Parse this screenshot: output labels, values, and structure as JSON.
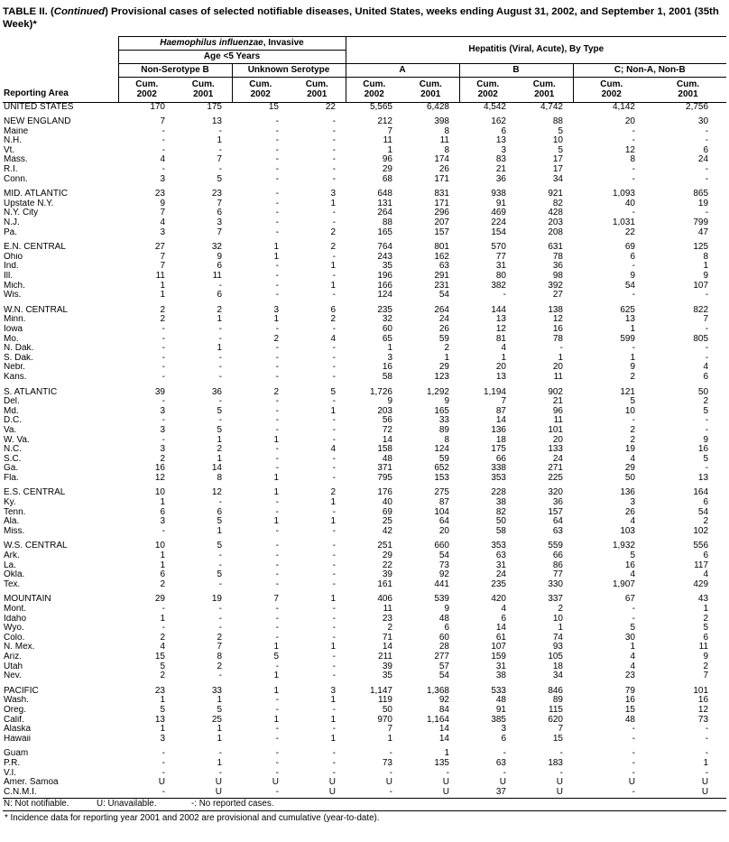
{
  "title": {
    "prefix": "TABLE II. (",
    "italic": "Continued",
    "rest": ") Provisional cases of selected notifiable diseases, United States, weeks ending August 31, 2002, and September 1, 2001 (35th Week)*"
  },
  "header": {
    "reporting_area": "Reporting Area",
    "group_haemophilus": {
      "italic": "Haemophilus influenzae",
      "rest": ", Invasive"
    },
    "subgroup_age": "Age <5 Years",
    "group_hepatitis": "Hepatitis (Viral, Acute), By Type",
    "col_groups": [
      "Non-Serotype B",
      "Unknown Serotype",
      "A",
      "B",
      "C; Non-A, Non-B"
    ],
    "cum_label": "Cum.",
    "years": [
      "2002",
      "2001",
      "2002",
      "2001",
      "2002",
      "2001",
      "2002",
      "2001",
      "2002",
      "2001"
    ]
  },
  "groups": [
    {
      "region": "united-states",
      "rows": [
        {
          "area": "UNITED STATES",
          "values": [
            "170",
            "175",
            "15",
            "22",
            "5,565",
            "6,428",
            "4,542",
            "4,742",
            "4,142",
            "2,756"
          ]
        }
      ]
    },
    {
      "region": "new-england",
      "rows": [
        {
          "area": "NEW ENGLAND",
          "values": [
            "7",
            "13",
            "-",
            "-",
            "212",
            "398",
            "162",
            "88",
            "20",
            "30"
          ]
        },
        {
          "area": "Maine",
          "values": [
            "-",
            "-",
            "-",
            "-",
            "7",
            "8",
            "6",
            "5",
            "-",
            "-"
          ]
        },
        {
          "area": "N.H.",
          "values": [
            "-",
            "1",
            "-",
            "-",
            "11",
            "11",
            "13",
            "10",
            "-",
            "-"
          ]
        },
        {
          "area": "Vt.",
          "values": [
            "-",
            "-",
            "-",
            "-",
            "1",
            "8",
            "3",
            "5",
            "12",
            "6"
          ]
        },
        {
          "area": "Mass.",
          "values": [
            "4",
            "7",
            "-",
            "-",
            "96",
            "174",
            "83",
            "17",
            "8",
            "24"
          ]
        },
        {
          "area": "R.I.",
          "values": [
            "-",
            "-",
            "-",
            "-",
            "29",
            "26",
            "21",
            "17",
            "-",
            "-"
          ]
        },
        {
          "area": "Conn.",
          "values": [
            "3",
            "5",
            "-",
            "-",
            "68",
            "171",
            "36",
            "34",
            "-",
            "-"
          ]
        }
      ]
    },
    {
      "region": "mid-atlantic",
      "rows": [
        {
          "area": "MID. ATLANTIC",
          "values": [
            "23",
            "23",
            "-",
            "3",
            "648",
            "831",
            "938",
            "921",
            "1,093",
            "865"
          ]
        },
        {
          "area": "Upstate N.Y.",
          "values": [
            "9",
            "7",
            "-",
            "1",
            "131",
            "171",
            "91",
            "82",
            "40",
            "19"
          ]
        },
        {
          "area": "N.Y. City",
          "values": [
            "7",
            "6",
            "-",
            "-",
            "264",
            "296",
            "469",
            "428",
            "-",
            "-"
          ]
        },
        {
          "area": "N.J.",
          "values": [
            "4",
            "3",
            "-",
            "-",
            "88",
            "207",
            "224",
            "203",
            "1,031",
            "799"
          ]
        },
        {
          "area": "Pa.",
          "values": [
            "3",
            "7",
            "-",
            "2",
            "165",
            "157",
            "154",
            "208",
            "22",
            "47"
          ]
        }
      ]
    },
    {
      "region": "en-central",
      "rows": [
        {
          "area": "E.N. CENTRAL",
          "values": [
            "27",
            "32",
            "1",
            "2",
            "764",
            "801",
            "570",
            "631",
            "69",
            "125"
          ]
        },
        {
          "area": "Ohio",
          "values": [
            "7",
            "9",
            "1",
            "-",
            "243",
            "162",
            "77",
            "78",
            "6",
            "8"
          ]
        },
        {
          "area": "Ind.",
          "values": [
            "7",
            "6",
            "-",
            "1",
            "35",
            "63",
            "31",
            "36",
            "-",
            "1"
          ]
        },
        {
          "area": "Ill.",
          "values": [
            "11",
            "11",
            "-",
            "-",
            "196",
            "291",
            "80",
            "98",
            "9",
            "9"
          ]
        },
        {
          "area": "Mich.",
          "values": [
            "1",
            "-",
            "-",
            "1",
            "166",
            "231",
            "382",
            "392",
            "54",
            "107"
          ]
        },
        {
          "area": "Wis.",
          "values": [
            "1",
            "6",
            "-",
            "-",
            "124",
            "54",
            "-",
            "27",
            "-",
            "-"
          ]
        }
      ]
    },
    {
      "region": "wn-central",
      "rows": [
        {
          "area": "W.N. CENTRAL",
          "values": [
            "2",
            "2",
            "3",
            "6",
            "235",
            "264",
            "144",
            "138",
            "625",
            "822"
          ]
        },
        {
          "area": "Minn.",
          "values": [
            "2",
            "1",
            "1",
            "2",
            "32",
            "24",
            "13",
            "12",
            "13",
            "7"
          ]
        },
        {
          "area": "Iowa",
          "values": [
            "-",
            "-",
            "-",
            "-",
            "60",
            "26",
            "12",
            "16",
            "1",
            "-"
          ]
        },
        {
          "area": "Mo.",
          "values": [
            "-",
            "-",
            "2",
            "4",
            "65",
            "59",
            "81",
            "78",
            "599",
            "805"
          ]
        },
        {
          "area": "N. Dak.",
          "values": [
            "-",
            "1",
            "-",
            "-",
            "1",
            "2",
            "4",
            "-",
            "-",
            "-"
          ]
        },
        {
          "area": "S. Dak.",
          "values": [
            "-",
            "-",
            "-",
            "-",
            "3",
            "1",
            "1",
            "1",
            "1",
            "-"
          ]
        },
        {
          "area": "Nebr.",
          "values": [
            "-",
            "-",
            "-",
            "-",
            "16",
            "29",
            "20",
            "20",
            "9",
            "4"
          ]
        },
        {
          "area": "Kans.",
          "values": [
            "-",
            "-",
            "-",
            "-",
            "58",
            "123",
            "13",
            "11",
            "2",
            "6"
          ]
        }
      ]
    },
    {
      "region": "s-atlantic",
      "rows": [
        {
          "area": "S. ATLANTIC",
          "values": [
            "39",
            "36",
            "2",
            "5",
            "1,726",
            "1,292",
            "1,194",
            "902",
            "121",
            "50"
          ]
        },
        {
          "area": "Del.",
          "values": [
            "-",
            "-",
            "-",
            "-",
            "9",
            "9",
            "7",
            "21",
            "5",
            "2"
          ]
        },
        {
          "area": "Md.",
          "values": [
            "3",
            "5",
            "-",
            "1",
            "203",
            "165",
            "87",
            "96",
            "10",
            "5"
          ]
        },
        {
          "area": "D.C.",
          "values": [
            "-",
            "-",
            "-",
            "-",
            "56",
            "33",
            "14",
            "11",
            "-",
            "-"
          ]
        },
        {
          "area": "Va.",
          "values": [
            "3",
            "5",
            "-",
            "-",
            "72",
            "89",
            "136",
            "101",
            "2",
            "-"
          ]
        },
        {
          "area": "W. Va.",
          "values": [
            "-",
            "1",
            "1",
            "-",
            "14",
            "8",
            "18",
            "20",
            "2",
            "9"
          ]
        },
        {
          "area": "N.C.",
          "values": [
            "3",
            "2",
            "-",
            "4",
            "158",
            "124",
            "175",
            "133",
            "19",
            "16"
          ]
        },
        {
          "area": "S.C.",
          "values": [
            "2",
            "1",
            "-",
            "-",
            "48",
            "59",
            "66",
            "24",
            "4",
            "5"
          ]
        },
        {
          "area": "Ga.",
          "values": [
            "16",
            "14",
            "-",
            "-",
            "371",
            "652",
            "338",
            "271",
            "29",
            "-"
          ]
        },
        {
          "area": "Fla.",
          "values": [
            "12",
            "8",
            "1",
            "-",
            "795",
            "153",
            "353",
            "225",
            "50",
            "13"
          ]
        }
      ]
    },
    {
      "region": "es-central",
      "rows": [
        {
          "area": "E.S. CENTRAL",
          "values": [
            "10",
            "12",
            "1",
            "2",
            "176",
            "275",
            "228",
            "320",
            "136",
            "164"
          ]
        },
        {
          "area": "Ky.",
          "values": [
            "1",
            "-",
            "-",
            "1",
            "40",
            "87",
            "38",
            "36",
            "3",
            "6"
          ]
        },
        {
          "area": "Tenn.",
          "values": [
            "6",
            "6",
            "-",
            "-",
            "69",
            "104",
            "82",
            "157",
            "26",
            "54"
          ]
        },
        {
          "area": "Ala.",
          "values": [
            "3",
            "5",
            "1",
            "1",
            "25",
            "64",
            "50",
            "64",
            "4",
            "2"
          ]
        },
        {
          "area": "Miss.",
          "values": [
            "-",
            "1",
            "-",
            "-",
            "42",
            "20",
            "58",
            "63",
            "103",
            "102"
          ]
        }
      ]
    },
    {
      "region": "ws-central",
      "rows": [
        {
          "area": "W.S. CENTRAL",
          "values": [
            "10",
            "5",
            "-",
            "-",
            "251",
            "660",
            "353",
            "559",
            "1,932",
            "556"
          ]
        },
        {
          "area": "Ark.",
          "values": [
            "1",
            "-",
            "-",
            "-",
            "29",
            "54",
            "63",
            "66",
            "5",
            "6"
          ]
        },
        {
          "area": "La.",
          "values": [
            "1",
            "-",
            "-",
            "-",
            "22",
            "73",
            "31",
            "86",
            "16",
            "117"
          ]
        },
        {
          "area": "Okla.",
          "values": [
            "6",
            "5",
            "-",
            "-",
            "39",
            "92",
            "24",
            "77",
            "4",
            "4"
          ]
        },
        {
          "area": "Tex.",
          "values": [
            "2",
            "-",
            "-",
            "-",
            "161",
            "441",
            "235",
            "330",
            "1,907",
            "429"
          ]
        }
      ]
    },
    {
      "region": "mountain",
      "rows": [
        {
          "area": "MOUNTAIN",
          "values": [
            "29",
            "19",
            "7",
            "1",
            "406",
            "539",
            "420",
            "337",
            "67",
            "43"
          ]
        },
        {
          "area": "Mont.",
          "values": [
            "-",
            "-",
            "-",
            "-",
            "11",
            "9",
            "4",
            "2",
            "-",
            "1"
          ]
        },
        {
          "area": "Idaho",
          "values": [
            "1",
            "-",
            "-",
            "-",
            "23",
            "48",
            "6",
            "10",
            "-",
            "2"
          ]
        },
        {
          "area": "Wyo.",
          "values": [
            "-",
            "-",
            "-",
            "-",
            "2",
            "6",
            "14",
            "1",
            "5",
            "5"
          ]
        },
        {
          "area": "Colo.",
          "values": [
            "2",
            "2",
            "-",
            "-",
            "71",
            "60",
            "61",
            "74",
            "30",
            "6"
          ]
        },
        {
          "area": "N. Mex.",
          "values": [
            "4",
            "7",
            "1",
            "1",
            "14",
            "28",
            "107",
            "93",
            "1",
            "11"
          ]
        },
        {
          "area": "Ariz.",
          "values": [
            "15",
            "8",
            "5",
            "-",
            "211",
            "277",
            "159",
            "105",
            "4",
            "9"
          ]
        },
        {
          "area": "Utah",
          "values": [
            "5",
            "2",
            "-",
            "-",
            "39",
            "57",
            "31",
            "18",
            "4",
            "2"
          ]
        },
        {
          "area": "Nev.",
          "values": [
            "2",
            "-",
            "1",
            "-",
            "35",
            "54",
            "38",
            "34",
            "23",
            "7"
          ]
        }
      ]
    },
    {
      "region": "pacific",
      "rows": [
        {
          "area": "PACIFIC",
          "values": [
            "23",
            "33",
            "1",
            "3",
            "1,147",
            "1,368",
            "533",
            "846",
            "79",
            "101"
          ]
        },
        {
          "area": "Wash.",
          "values": [
            "1",
            "1",
            "-",
            "1",
            "119",
            "92",
            "48",
            "89",
            "16",
            "16"
          ]
        },
        {
          "area": "Oreg.",
          "values": [
            "5",
            "5",
            "-",
            "-",
            "50",
            "84",
            "91",
            "115",
            "15",
            "12"
          ]
        },
        {
          "area": "Calif.",
          "values": [
            "13",
            "25",
            "1",
            "1",
            "970",
            "1,164",
            "385",
            "620",
            "48",
            "73"
          ]
        },
        {
          "area": "Alaska",
          "values": [
            "1",
            "1",
            "-",
            "-",
            "7",
            "14",
            "3",
            "7",
            "-",
            "-"
          ]
        },
        {
          "area": "Hawaii",
          "values": [
            "3",
            "1",
            "-",
            "1",
            "1",
            "14",
            "6",
            "15",
            "-",
            "-"
          ]
        }
      ]
    },
    {
      "region": "territories",
      "rows": [
        {
          "area": "Guam",
          "values": [
            "-",
            "-",
            "-",
            "-",
            "-",
            "1",
            "-",
            "-",
            "-",
            "-"
          ]
        },
        {
          "area": "P.R.",
          "values": [
            "-",
            "1",
            "-",
            "-",
            "73",
            "135",
            "63",
            "183",
            "-",
            "1"
          ]
        },
        {
          "area": "V.I.",
          "values": [
            "-",
            "-",
            "-",
            "-",
            "-",
            "-",
            "-",
            "-",
            "-",
            "-"
          ]
        },
        {
          "area": "Amer. Samoa",
          "values": [
            "U",
            "U",
            "U",
            "U",
            "U",
            "U",
            "U",
            "U",
            "U",
            "U"
          ]
        },
        {
          "area": "C.N.M.I.",
          "values": [
            "-",
            "U",
            "-",
            "U",
            "-",
            "U",
            "37",
            "U",
            "-",
            "U"
          ]
        }
      ]
    }
  ],
  "footnotes": {
    "key": [
      "N: Not notifiable.",
      "U: Unavailable.",
      "-: No reported cases."
    ],
    "note": "* Incidence data for reporting year 2001 and 2002 are provisional and cumulative (year-to-date)."
  }
}
